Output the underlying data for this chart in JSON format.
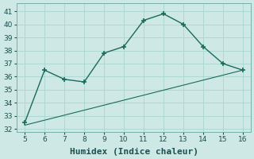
{
  "xlabel": "Humidex (Indice chaleur)",
  "line1_x": [
    5,
    6,
    7,
    8,
    9,
    10,
    11,
    12,
    13,
    14,
    15,
    16
  ],
  "line1_y": [
    32.5,
    36.5,
    35.8,
    35.6,
    37.8,
    38.3,
    40.3,
    40.8,
    40.0,
    38.3,
    37.0,
    36.5
  ],
  "line2_x": [
    5,
    16
  ],
  "line2_y": [
    32.3,
    36.5
  ],
  "line_color": "#1a6b5a",
  "bg_color": "#cde8e5",
  "grid_color": "#aad4d0",
  "xlim": [
    4.6,
    16.4
  ],
  "ylim": [
    31.8,
    41.6
  ],
  "xticks": [
    5,
    6,
    7,
    8,
    9,
    10,
    11,
    12,
    13,
    14,
    15,
    16
  ],
  "yticks": [
    32,
    33,
    34,
    35,
    36,
    37,
    38,
    39,
    40,
    41
  ],
  "xlabel_fontsize": 8,
  "tick_fontsize": 6.5,
  "marker": "+",
  "marker_size": 5,
  "lw1": 1.0,
  "lw2": 0.8
}
